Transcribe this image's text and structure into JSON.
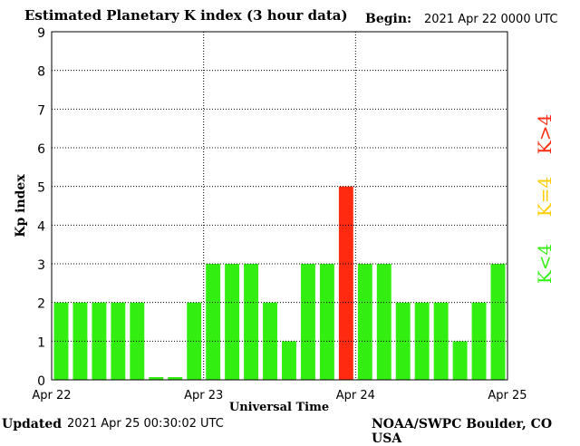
{
  "header": {
    "begin_label": "Begin:",
    "begin_value": "2021 Apr 22 0000 UTC"
  },
  "footer": {
    "updated_label": "Updated",
    "updated_value": "2021 Apr 25 00:30:02 UTC",
    "credit": "NOAA/SWPC Boulder, CO USA"
  },
  "legend": [
    {
      "label": "K>4",
      "color": "#ff2a10"
    },
    {
      "label": "K=4",
      "color": "#ffcc00"
    },
    {
      "label": "K<4",
      "color": "#33ee11"
    }
  ],
  "chart_data": {
    "type": "bar",
    "title": "Estimated Planetary K index (3 hour data)",
    "xlabel": "Universal Time",
    "ylabel": "Kp index",
    "ylim": [
      0,
      9
    ],
    "yticks": [
      "0",
      "1",
      "2",
      "3",
      "4",
      "5",
      "6",
      "7",
      "8",
      "9"
    ],
    "xticks": [
      "Apr 22",
      "Apr 23",
      "Apr 24",
      "Apr 25"
    ],
    "grid": true,
    "values": [
      2,
      2,
      2,
      2,
      2,
      0.07,
      0.07,
      2,
      3,
      3,
      3,
      2,
      1,
      3,
      3,
      5,
      3,
      3,
      2,
      2,
      2,
      1,
      2,
      3
    ],
    "colors": {
      "below4": "#33ee11",
      "equal4": "#ffcc00",
      "above4": "#ff2a10"
    }
  }
}
